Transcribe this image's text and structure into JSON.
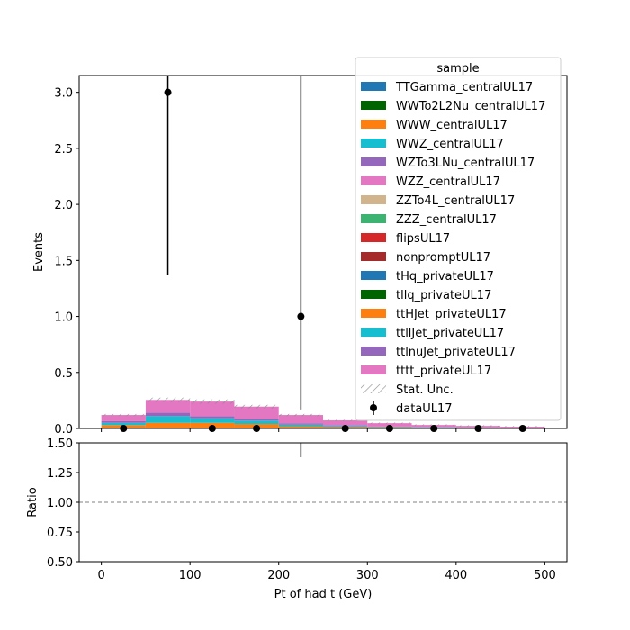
{
  "chart_data": {
    "type": "bar",
    "subtype": "stacked histogram with data points and ratio panel",
    "xlabel": "Pt of had t (GeV)",
    "ylabel": "Events",
    "ratio_ylabel": "Ratio",
    "xlim": [
      -25,
      525
    ],
    "ylim": [
      0,
      3.15
    ],
    "ratio_ylim": [
      0.5,
      1.5
    ],
    "x_ticks": [
      0,
      100,
      200,
      300,
      400,
      500
    ],
    "y_ticks": [
      "0.0",
      "0.5",
      "1.0",
      "1.5",
      "2.0",
      "2.5",
      "3.0"
    ],
    "ratio_y_ticks": [
      "0.50",
      "0.75",
      "1.00",
      "1.25",
      "1.50"
    ],
    "ratio_reference_line": 1.0,
    "bin_edges": [
      0,
      50,
      100,
      150,
      200,
      250,
      300,
      350,
      400,
      450,
      500
    ],
    "legend": {
      "title": "sample",
      "placement": "top-right",
      "entries": [
        {
          "name": "TTGamma_centralUL17",
          "color": "#1f77b4"
        },
        {
          "name": "WWTo2L2Nu_centralUL17",
          "color": "#006400"
        },
        {
          "name": "WWW_centralUL17",
          "color": "#ff7f0e"
        },
        {
          "name": "WWZ_centralUL17",
          "color": "#17becf"
        },
        {
          "name": "WZTo3LNu_centralUL17",
          "color": "#9467bd"
        },
        {
          "name": "WZZ_centralUL17",
          "color": "#e377c2"
        },
        {
          "name": "ZZTo4L_centralUL17",
          "color": "#d2b48c"
        },
        {
          "name": "ZZZ_centralUL17",
          "color": "#3cb371"
        },
        {
          "name": "flipsUL17",
          "color": "#d62728"
        },
        {
          "name": "nonpromptUL17",
          "color": "#a52a2a"
        },
        {
          "name": "tHq_privateUL17",
          "color": "#1f77b4"
        },
        {
          "name": "tllq_privateUL17",
          "color": "#006400"
        },
        {
          "name": "ttHJet_privateUL17",
          "color": "#ff7f0e"
        },
        {
          "name": "ttllJet_privateUL17",
          "color": "#17becf"
        },
        {
          "name": "ttlnuJet_privateUL17",
          "color": "#9467bd"
        },
        {
          "name": "tttt_privateUL17",
          "color": "#e377c2"
        }
      ],
      "stat_unc_label": "Stat. Unc.",
      "data_label": "dataUL17"
    },
    "series": [
      {
        "name": "ttHJet_privateUL17",
        "color": "#ff7f0e",
        "values": [
          0.03,
          0.05,
          0.05,
          0.04,
          0.02,
          0.012,
          0.008,
          0.005,
          0.003,
          0.002
        ]
      },
      {
        "name": "ttllJet_privateUL17",
        "color": "#17becf",
        "values": [
          0.02,
          0.06,
          0.04,
          0.03,
          0.015,
          0.01,
          0.006,
          0.004,
          0.002,
          0.001
        ]
      },
      {
        "name": "ttlnuJet_privateUL17",
        "color": "#9467bd",
        "values": [
          0.015,
          0.03,
          0.02,
          0.015,
          0.01,
          0.005,
          0.003,
          0.002,
          0.001,
          0.001
        ]
      },
      {
        "name": "tttt_privateUL17",
        "color": "#e377c2",
        "values": [
          0.055,
          0.115,
          0.13,
          0.11,
          0.075,
          0.045,
          0.03,
          0.02,
          0.017,
          0.012
        ]
      }
    ],
    "data": {
      "name": "dataUL17",
      "x": [
        25,
        75,
        125,
        175,
        225,
        275,
        325,
        375,
        425,
        475
      ],
      "y": [
        0,
        3,
        0,
        0,
        1,
        0,
        0,
        0,
        0,
        0
      ],
      "err_low": [
        0,
        1.63,
        0,
        0,
        0.83,
        0,
        0,
        0,
        0,
        0
      ],
      "err_high": [
        0,
        2.92,
        0,
        0,
        2.3,
        0,
        0,
        0,
        0,
        0
      ]
    }
  }
}
